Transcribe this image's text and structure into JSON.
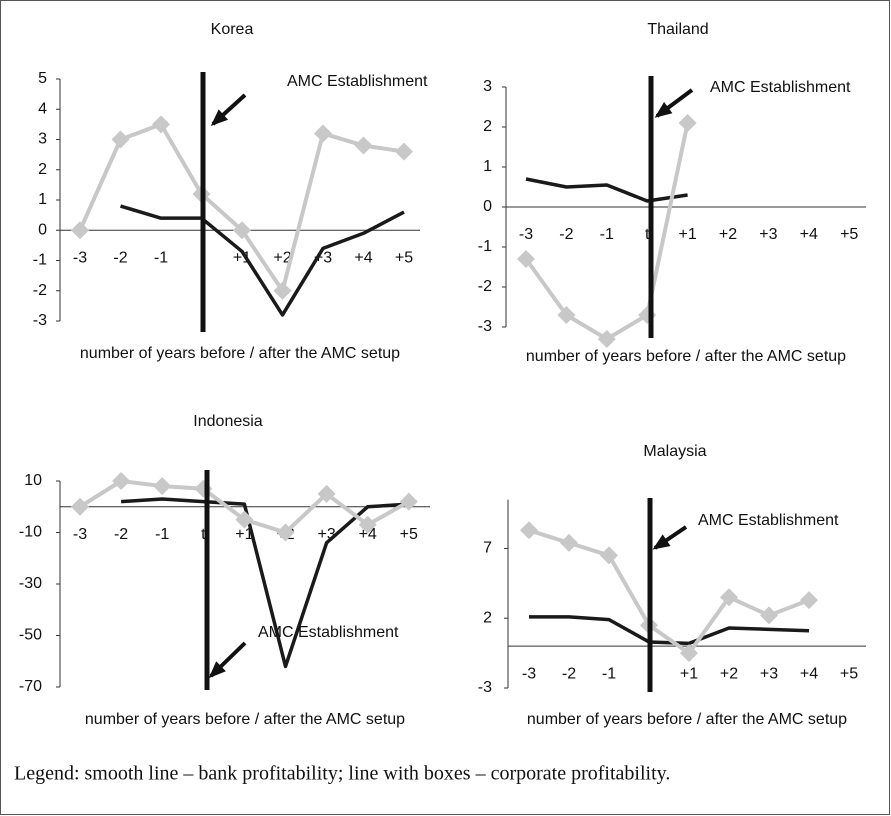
{
  "chart_data": [
    {
      "type": "line",
      "title": "Korea",
      "categories": [
        "-3",
        "-2",
        "-1",
        null,
        "+1",
        "+2",
        "+3",
        "+4",
        "+5"
      ],
      "series": [
        {
          "name": "bank profitability",
          "color": "#1a1a1a",
          "marker": "none",
          "values": [
            null,
            0.8,
            0.4,
            0.4,
            -0.7,
            -2.8,
            -0.6,
            -0.1,
            0.6
          ]
        },
        {
          "name": "corporate profitability",
          "color": "#c8c8c8",
          "marker": "diamond",
          "values": [
            0,
            3.0,
            3.5,
            1.2,
            0,
            -2.0,
            3.2,
            2.8,
            2.6
          ]
        }
      ],
      "ylim": [
        -3,
        5
      ],
      "yticks": [
        -3,
        -2,
        -1,
        0,
        1,
        2,
        3,
        4,
        5
      ],
      "x_label": "number of years before / after the AMC setup",
      "annotation": "AMC Establishment"
    },
    {
      "type": "line",
      "title": "Thailand",
      "categories": [
        "-3",
        "-2",
        "-1",
        "t",
        "+1",
        "+2",
        "+3",
        "+4",
        "+5"
      ],
      "series": [
        {
          "name": "bank profitability",
          "color": "#1a1a1a",
          "marker": "none",
          "values": [
            0.7,
            0.5,
            0.55,
            0.15,
            0.3,
            null,
            null,
            null,
            null
          ]
        },
        {
          "name": "corporate profitability",
          "color": "#c8c8c8",
          "marker": "diamond",
          "values": [
            -1.3,
            -2.7,
            -3.3,
            -2.7,
            2.1,
            null,
            null,
            null,
            null
          ]
        }
      ],
      "ylim": [
        -3,
        3
      ],
      "yticks": [
        -3,
        -2,
        -1,
        0,
        1,
        2,
        3
      ],
      "x_label": "number of years before / after the AMC setup",
      "annotation": "AMC Establishment"
    },
    {
      "type": "line",
      "title": "Indonesia",
      "categories": [
        "-3",
        "-2",
        "-1",
        "t",
        "+1",
        "+2",
        "+3",
        "+4",
        "+5"
      ],
      "series": [
        {
          "name": "bank profitability",
          "color": "#1a1a1a",
          "marker": "none",
          "values": [
            null,
            2,
            3,
            2,
            1,
            -62,
            -14,
            0,
            1
          ]
        },
        {
          "name": "corporate profitability",
          "color": "#c8c8c8",
          "marker": "diamond",
          "values": [
            0,
            10,
            8,
            7,
            -5,
            -10,
            5,
            -7,
            2
          ]
        }
      ],
      "ylim": [
        -70,
        10
      ],
      "yticks": [
        -70,
        -50,
        -30,
        -10,
        10
      ],
      "x_label": "number of years before / after the AMC setup",
      "annotation": "AMC Establishment"
    },
    {
      "type": "line",
      "title": "Malaysia",
      "categories": [
        "-3",
        "-2",
        "-1",
        null,
        "+1",
        "+2",
        "+3",
        "+4",
        "+5"
      ],
      "series": [
        {
          "name": "bank profitability",
          "color": "#1a1a1a",
          "marker": "none",
          "values": [
            2.1,
            2.1,
            1.9,
            0.3,
            0.2,
            1.3,
            1.2,
            1.1,
            null
          ]
        },
        {
          "name": "corporate profitability",
          "color": "#c8c8c8",
          "marker": "diamond",
          "values": [
            8.3,
            7.4,
            6.5,
            1.5,
            -0.5,
            3.5,
            2.2,
            3.3,
            null
          ]
        }
      ],
      "ylim": [
        -3,
        10.5
      ],
      "yticks": [
        -3,
        2,
        7
      ],
      "x_label": "number of years before / after the AMC setup",
      "annotation": "AMC Establishment"
    }
  ],
  "legend_note": "Legend: smooth line – bank profitability; line with boxes – corporate profitability."
}
